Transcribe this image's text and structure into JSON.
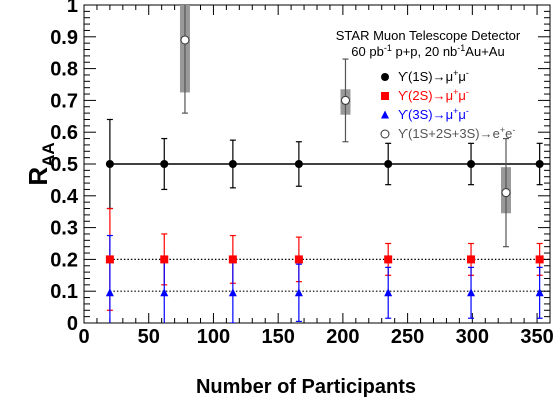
{
  "chart_data": {
    "type": "scatter",
    "title": "",
    "header": {
      "line1": "STAR Muon Telescope Detector",
      "line2": {
        "lumi_pp": "60 pb",
        "exp_pp": "-1",
        "text_pp": " p+p, 20 nb",
        "exp_aa": "-1",
        "text_aa": "Au+Au"
      }
    },
    "xlabel": "Number of Participants",
    "ylabel": {
      "main": "R",
      "sub": "AA"
    },
    "xlim": [
      0,
      360
    ],
    "ylim": [
      0,
      1
    ],
    "xticks": [
      0,
      50,
      100,
      150,
      200,
      250,
      300,
      350
    ],
    "xtick_labels": [
      "0",
      "50",
      "100",
      "150",
      "200",
      "250",
      "300",
      "350"
    ],
    "yticks": [
      0,
      0.1,
      0.2,
      0.3,
      0.4,
      0.5,
      0.6,
      0.7,
      0.8,
      0.9,
      1
    ],
    "ytick_labels": [
      "0",
      "0.1",
      "0.2",
      "0.3",
      "0.4",
      "0.5",
      "0.6",
      "0.7",
      "0.8",
      "0.9",
      "1"
    ],
    "reference_lines": [
      {
        "y": 0.5,
        "style": "solid",
        "color": "#000000"
      },
      {
        "y": 0.2,
        "style": "dotted",
        "color": "#000000"
      },
      {
        "y": 0.1,
        "style": "dotted",
        "color": "#000000"
      }
    ],
    "series": [
      {
        "name": "ϒ(1S)→μ⁺μ⁻",
        "legend": {
          "base": "ϒ(1S)→μ",
          "sup1": "+",
          "mid": "μ",
          "sup2": "-"
        },
        "marker": "circle-filled",
        "color": "#000000",
        "errbar_color": "#000000",
        "x": [
          20,
          62,
          115,
          166,
          235,
          299,
          352
        ],
        "y": [
          0.5,
          0.5,
          0.5,
          0.5,
          0.5,
          0.5,
          0.5
        ],
        "err": [
          0.14,
          0.08,
          0.075,
          0.07,
          0.065,
          0.065,
          0.065
        ],
        "sys": []
      },
      {
        "name": "ϒ(2S)→μ⁺μ⁻",
        "legend": {
          "base": "ϒ(2S)→μ",
          "sup1": "+",
          "mid": "μ",
          "sup2": "-"
        },
        "marker": "square-filled",
        "color": "#ff0000",
        "errbar_color": "#ff0000",
        "x": [
          20,
          62,
          115,
          166,
          235,
          299,
          352
        ],
        "y": [
          0.2,
          0.2,
          0.2,
          0.2,
          0.2,
          0.2,
          0.2
        ],
        "err": [
          0.16,
          0.08,
          0.075,
          0.07,
          0.05,
          0.05,
          0.05
        ],
        "sys": []
      },
      {
        "name": "ϒ(3S)→μ⁺μ⁻",
        "legend": {
          "base": "ϒ(3S)→μ",
          "sup1": "+",
          "mid": "μ",
          "sup2": "-"
        },
        "marker": "triangle-filled",
        "color": "#0000ff",
        "errbar_color": "#0000ff",
        "x": [
          20,
          62,
          115,
          166,
          235,
          299,
          352
        ],
        "y": [
          0.095,
          0.095,
          0.095,
          0.095,
          0.095,
          0.095,
          0.095
        ],
        "err": [
          0.18,
          0.1,
          0.095,
          0.09,
          0.08,
          0.08,
          0.08
        ],
        "sys": []
      },
      {
        "name": "ϒ(1S+2S+3S)→e⁺e⁻",
        "legend": {
          "base": "ϒ(1S+2S+3S)→e",
          "sup1": "+",
          "mid": "e",
          "sup2": "-"
        },
        "marker": "circle-open",
        "color": "#555555",
        "errbar_color": "#555555",
        "x": [
          78,
          202,
          326
        ],
        "y": [
          0.89,
          0.7,
          0.41
        ],
        "err": [
          0.23,
          0.13,
          0.17
        ],
        "sys": [
          [
            0.725,
            1.0
          ],
          [
            0.655,
            0.735
          ],
          [
            0.345,
            0.49
          ]
        ]
      }
    ],
    "legend_position": "top-right"
  }
}
